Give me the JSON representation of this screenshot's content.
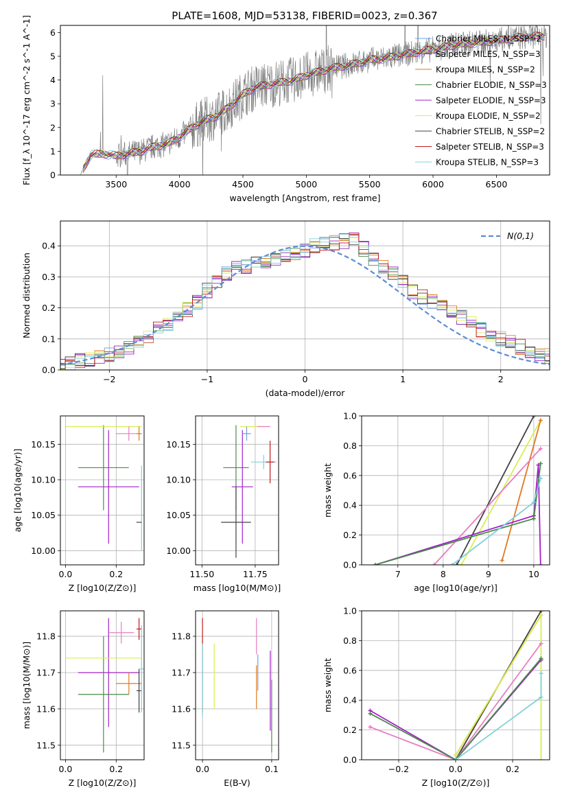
{
  "figure": {
    "title": "PLATE=1608, MJD=53138, FIBERID=0023, z=0.367"
  },
  "chart_data": [
    {
      "id": "spectrum",
      "type": "line",
      "xlabel": "wavelength [Angstrom, rest frame]",
      "ylabel": "Flux [f_λ 10^-17 erg cm^-2 s^-1 A^-1]",
      "xlim": [
        3060,
        6920
      ],
      "ylim": [
        0,
        6.3
      ],
      "xticks": [
        3500,
        4000,
        4500,
        5000,
        5500,
        6000,
        6500
      ],
      "yticks": [
        0,
        1,
        2,
        3,
        4,
        5,
        6
      ],
      "grid": false,
      "legend_position": "top-right",
      "data_continuum": {
        "x": [
          3220,
          3300,
          3400,
          3500,
          3600,
          3700,
          3800,
          3900,
          4000,
          4100,
          4200,
          4300,
          4400,
          4500,
          4600,
          4700,
          4800,
          4900,
          5000,
          5100,
          5200,
          5300,
          5400,
          5500,
          5600,
          5700,
          5800,
          5900,
          6000,
          6100,
          6200,
          6300,
          6400,
          6500,
          6600,
          6700,
          6800
        ],
        "y": [
          0.05,
          0.85,
          0.9,
          0.8,
          0.9,
          1.0,
          1.2,
          1.3,
          1.6,
          2.0,
          2.3,
          2.5,
          2.9,
          3.4,
          3.7,
          3.8,
          3.9,
          4.0,
          4.2,
          4.35,
          4.5,
          4.6,
          4.7,
          4.85,
          4.9,
          5.0,
          5.1,
          5.2,
          5.3,
          5.4,
          5.5,
          5.55,
          5.6,
          5.65,
          5.75,
          5.8,
          5.85
        ]
      },
      "series": [
        {
          "name": "Chabrier MILES, N_SSP=2",
          "color": "#6aa0e0"
        },
        {
          "name": "Salpeter MILES, N_SSP=3",
          "color": "#8e2fb0"
        },
        {
          "name": "Kroupa MILES, N_SSP=2",
          "color": "#e07820"
        },
        {
          "name": "Chabrier ELODIE, N_SSP=3",
          "color": "#4a8a4a"
        },
        {
          "name": "Salpeter ELODIE, N_SSP=3",
          "color": "#a020c8"
        },
        {
          "name": "Kroupa ELODIE, N_SSP=2",
          "color": "#d8ee50"
        },
        {
          "name": "Chabrier STELIB, N_SSP=2",
          "color": "#404040"
        },
        {
          "name": "Salpeter STELIB, N_SSP=3",
          "color": "#c01818"
        },
        {
          "name": "Kroupa STELIB, N_SSP=3",
          "color": "#80d0d8"
        }
      ]
    },
    {
      "id": "residuals",
      "type": "line",
      "xlabel": "(data-model)/error",
      "ylabel": "Normed distribution",
      "xlim": [
        -2.5,
        2.5
      ],
      "ylim": [
        0,
        0.48
      ],
      "xticks": [
        -2,
        -1,
        0,
        1,
        2
      ],
      "yticks": [
        0.0,
        0.1,
        0.2,
        0.3,
        0.4
      ],
      "grid": true,
      "legend_position": "top-right",
      "reference_curve": {
        "name": "N(0,1)",
        "color": "#5b8bd6",
        "style": "dashed"
      },
      "histogram_envelope": {
        "x": [
          -2.5,
          -2.3,
          -2.1,
          -1.9,
          -1.7,
          -1.5,
          -1.3,
          -1.1,
          -0.9,
          -0.7,
          -0.5,
          -0.3,
          -0.1,
          0.1,
          0.3,
          0.5,
          0.7,
          0.9,
          1.1,
          1.3,
          1.5,
          1.7,
          1.9,
          2.1,
          2.3,
          2.5
        ],
        "y": [
          0.015,
          0.03,
          0.04,
          0.06,
          0.09,
          0.13,
          0.17,
          0.22,
          0.29,
          0.33,
          0.34,
          0.36,
          0.37,
          0.4,
          0.41,
          0.42,
          0.36,
          0.31,
          0.25,
          0.22,
          0.19,
          0.15,
          0.11,
          0.09,
          0.06,
          0.045
        ]
      }
    },
    {
      "id": "age-vs-Z",
      "type": "scatter",
      "xlabel": "Z [log10(Z/Z⊙)]",
      "ylabel": "age  [log10(age/yr)]",
      "xlim": [
        -0.02,
        0.31
      ],
      "ylim": [
        9.98,
        10.19
      ],
      "xticks": [
        0.0,
        0.2
      ],
      "yticks": [
        10.0,
        10.05,
        10.1,
        10.15
      ],
      "grid": true,
      "points": [
        {
          "x": 0.17,
          "y": 10.09,
          "xerr": 0.12,
          "yerr": 0.08,
          "color": "#a020c8"
        },
        {
          "x": 0.15,
          "y": 10.117,
          "xerr": 0.1,
          "yerr": 0.06,
          "color": "#4a8a4a"
        },
        {
          "x": 0.15,
          "y": 10.175,
          "xerr": 0.15,
          "yerr": 0.0,
          "color": "#d8ee50"
        },
        {
          "x": 0.25,
          "y": 10.165,
          "xerr": 0.05,
          "yerr": 0.01,
          "color": "#e87cc0"
        },
        {
          "x": 0.29,
          "y": 10.165,
          "xerr": 0.01,
          "yerr": 0.01,
          "color": "#e07820"
        },
        {
          "x": 0.3,
          "y": 10.06,
          "xerr": 0.0,
          "yerr": 0.06,
          "color": "#80d0d8"
        },
        {
          "x": 0.29,
          "y": 10.04,
          "xerr": 0.01,
          "yerr": 0.0,
          "color": "#404040"
        }
      ]
    },
    {
      "id": "age-vs-mass",
      "type": "scatter",
      "xlabel": "mass [log10(M/M⊙)]",
      "ylabel": "",
      "xlim": [
        11.47,
        11.86
      ],
      "ylim": [
        9.98,
        10.19
      ],
      "xticks": [
        11.5,
        11.75
      ],
      "yticks": [
        10.0,
        10.05,
        10.1,
        10.15
      ],
      "grid": true,
      "points": [
        {
          "x": 11.66,
          "y": 10.117,
          "xerr": 0.06,
          "yerr": 0.06,
          "color": "#4a8a4a"
        },
        {
          "x": 11.69,
          "y": 10.09,
          "xerr": 0.05,
          "yerr": 0.08,
          "color": "#a020c8"
        },
        {
          "x": 11.66,
          "y": 10.04,
          "xerr": 0.07,
          "yerr": 0.05,
          "color": "#404040"
        },
        {
          "x": 11.75,
          "y": 10.175,
          "xerr": 0.07,
          "yerr": 0.0,
          "color": "#d8ee50"
        },
        {
          "x": 11.79,
          "y": 10.125,
          "xerr": 0.06,
          "yerr": 0.01,
          "color": "#80d0d8"
        },
        {
          "x": 11.82,
          "y": 10.125,
          "xerr": 0.02,
          "yerr": 0.03,
          "color": "#c01818"
        },
        {
          "x": 11.79,
          "y": 10.175,
          "xerr": 0.03,
          "yerr": 0.0,
          "color": "#e87cc0"
        },
        {
          "x": 11.71,
          "y": 10.165,
          "xerr": 0.02,
          "yerr": 0.01,
          "color": "#6aa0e0"
        }
      ]
    },
    {
      "id": "weight-vs-age",
      "type": "line",
      "xlabel": "age  [log10(age/yr)]",
      "ylabel": "mass weight",
      "xlim": [
        6.2,
        10.35
      ],
      "ylim": [
        0.0,
        1.0
      ],
      "xticks": [
        7,
        8,
        9,
        10
      ],
      "yticks": [
        0.0,
        0.2,
        0.4,
        0.6,
        0.8,
        1.0
      ],
      "grid": true,
      "series": [
        {
          "color": "#404040",
          "x": [
            8.3,
            10.0
          ],
          "y": [
            0.0,
            1.0
          ]
        },
        {
          "color": "#d8ee50",
          "x": [
            8.4,
            10.15
          ],
          "y": [
            0.0,
            0.97
          ]
        },
        {
          "color": "#e07820",
          "x": [
            9.3,
            10.15
          ],
          "y": [
            0.03,
            0.97
          ]
        },
        {
          "color": "#e87cc0",
          "x": [
            7.8,
            10.15
          ],
          "y": [
            0.0,
            0.78
          ]
        },
        {
          "color": "#a020c8",
          "x": [
            6.5,
            10.0,
            10.1,
            10.15
          ],
          "y": [
            0.0,
            0.33,
            0.67,
            0.0
          ]
        },
        {
          "color": "#4a8a4a",
          "x": [
            6.5,
            10.0,
            10.15
          ],
          "y": [
            0.0,
            0.31,
            0.68
          ]
        },
        {
          "color": "#80d0d8",
          "x": [
            8.2,
            10.0,
            10.15
          ],
          "y": [
            0.0,
            0.42,
            0.58
          ]
        }
      ]
    },
    {
      "id": "mass-vs-Z",
      "type": "scatter",
      "xlabel": "Z [log10(Z/Z⊙)]",
      "ylabel": "mass [log10(M/M⊙)]",
      "xlim": [
        -0.02,
        0.31
      ],
      "ylim": [
        11.46,
        11.87
      ],
      "xticks": [
        0.0,
        0.2
      ],
      "yticks": [
        11.5,
        11.6,
        11.7,
        11.8
      ],
      "grid": true,
      "points": [
        {
          "x": 0.17,
          "y": 11.7,
          "xerr": 0.12,
          "yerr": 0.15,
          "color": "#a020c8"
        },
        {
          "x": 0.15,
          "y": 11.64,
          "xerr": 0.1,
          "yerr": 0.16,
          "color": "#4a8a4a"
        },
        {
          "x": 0.15,
          "y": 11.74,
          "xerr": 0.15,
          "yerr": 0.0,
          "color": "#d8ee50"
        },
        {
          "x": 0.22,
          "y": 11.81,
          "xerr": 0.05,
          "yerr": 0.03,
          "color": "#e87cc0"
        },
        {
          "x": 0.25,
          "y": 11.67,
          "xerr": 0.05,
          "yerr": 0.03,
          "color": "#e07820"
        },
        {
          "x": 0.29,
          "y": 11.82,
          "xerr": 0.01,
          "yerr": 0.03,
          "color": "#c01818"
        },
        {
          "x": 0.29,
          "y": 11.65,
          "xerr": 0.01,
          "yerr": 0.06,
          "color": "#404040"
        },
        {
          "x": 0.3,
          "y": 11.71,
          "xerr": 0.01,
          "yerr": 0.12,
          "color": "#80d0d8"
        }
      ]
    },
    {
      "id": "mass-vs-EBV",
      "type": "scatter",
      "xlabel": "E(B-V)",
      "ylabel": "",
      "xlim": [
        -0.01,
        0.11
      ],
      "ylim": [
        11.46,
        11.87
      ],
      "xticks": [
        0.0,
        0.1
      ],
      "yticks": [
        11.5,
        11.6,
        11.7,
        11.8
      ],
      "grid": true,
      "points": [
        {
          "x": 0.0,
          "y": 11.72,
          "xerr": 0.0,
          "yerr": 0.13,
          "color": "#c01818"
        },
        {
          "x": 0.0,
          "y": 11.68,
          "xerr": 0.0,
          "yerr": 0.1,
          "color": "#80d0d8"
        },
        {
          "x": 0.017,
          "y": 11.69,
          "xerr": 0.0,
          "yerr": 0.09,
          "color": "#d8ee50"
        },
        {
          "x": 0.078,
          "y": 11.8,
          "xerr": 0.0,
          "yerr": 0.05,
          "color": "#e87cc0"
        },
        {
          "x": 0.078,
          "y": 11.66,
          "xerr": 0.0,
          "yerr": 0.06,
          "color": "#e07820"
        },
        {
          "x": 0.08,
          "y": 11.7,
          "xerr": 0.0,
          "yerr": 0.05,
          "color": "#6aa0e0"
        },
        {
          "x": 0.098,
          "y": 11.65,
          "xerr": 0.0,
          "yerr": 0.11,
          "color": "#a020c8"
        },
        {
          "x": 0.1,
          "y": 11.58,
          "xerr": 0.0,
          "yerr": 0.1,
          "color": "#4a8a4a"
        }
      ]
    },
    {
      "id": "weight-vs-Z",
      "type": "line",
      "xlabel": "Z [log10(Z/Z⊙)]",
      "ylabel": "mass weight",
      "xlim": [
        -0.33,
        0.33
      ],
      "ylim": [
        0.0,
        1.0
      ],
      "xticks": [
        -0.2,
        0.0,
        0.2
      ],
      "yticks": [
        0.0,
        0.2,
        0.4,
        0.6,
        0.8,
        1.0
      ],
      "grid": true,
      "series": [
        {
          "color": "#404040",
          "x": [
            0.0,
            0.3
          ],
          "y": [
            0.0,
            1.0
          ]
        },
        {
          "color": "#e07820",
          "x": [
            0.0,
            0.3
          ],
          "y": [
            0.03,
            0.97
          ]
        },
        {
          "color": "#d8ee50",
          "x": [
            0.0,
            0.3,
            0.3
          ],
          "y": [
            0.03,
            0.97,
            0.0
          ]
        },
        {
          "color": "#e87cc0",
          "x": [
            -0.3,
            0.0,
            0.3
          ],
          "y": [
            0.22,
            0.0,
            0.78
          ]
        },
        {
          "color": "#a020c8",
          "x": [
            -0.3,
            0.0,
            0.3
          ],
          "y": [
            0.33,
            0.0,
            0.67
          ]
        },
        {
          "color": "#4a8a4a",
          "x": [
            -0.3,
            0.0,
            0.3
          ],
          "y": [
            0.31,
            0.0,
            0.68
          ]
        },
        {
          "color": "#80d0d8",
          "x": [
            0.0,
            0.3,
            0.3
          ],
          "y": [
            0.0,
            0.42,
            0.58
          ]
        }
      ]
    }
  ]
}
